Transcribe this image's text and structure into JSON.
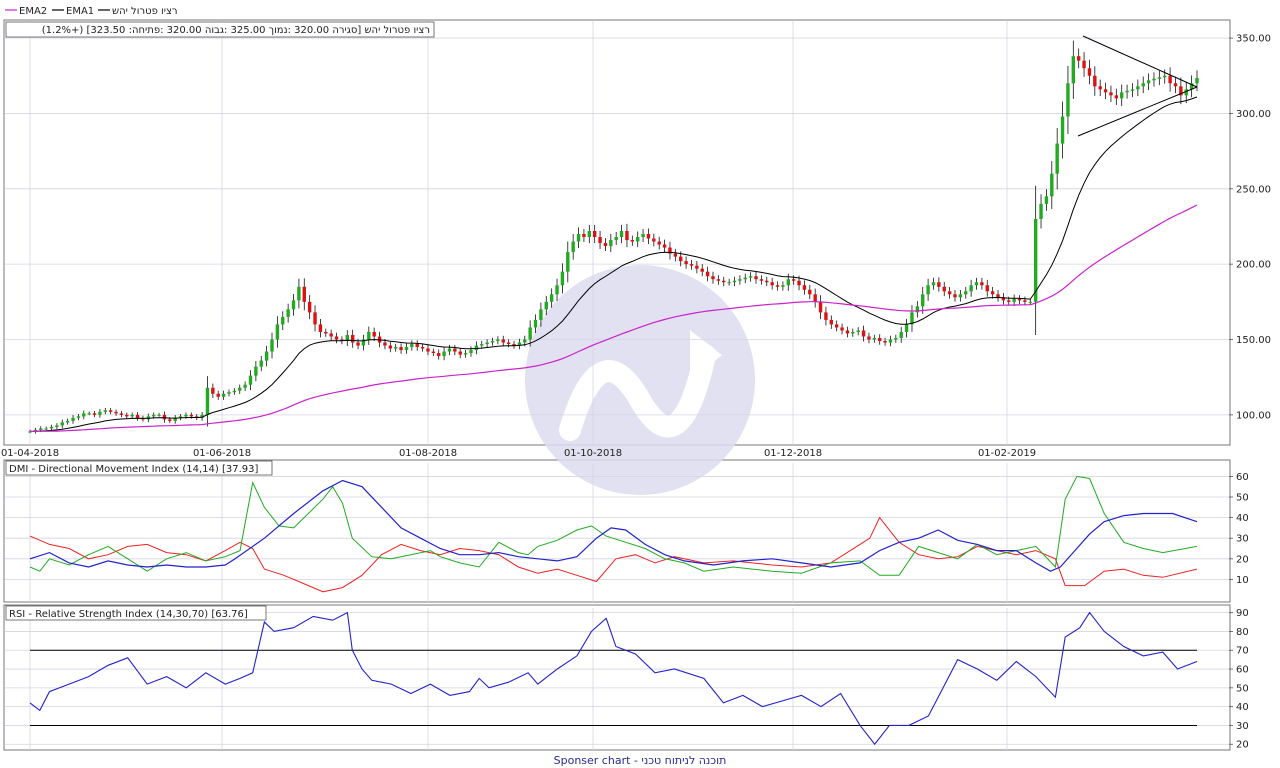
{
  "legend": {
    "ema2": "EMA2",
    "ema1": "EMA1",
    "stock": "רציו פטרול יהש"
  },
  "price_info": "(1.2%+) [323.50 :סגירה  320.00 :נמוך  325.00 :גבוה  320.00 :פתיחה] רציו פטרול יהש",
  "dmi_title": "DMI - Directional Movement Index (14,14) [37.93]",
  "rsi_title": "RSI - Relative Strength Index (14,30,70) [63.76]",
  "footer": "Sponser chart - תוכנה לניתוח טכני",
  "colors": {
    "ema1": "#000000",
    "ema2": "#cc22cc",
    "up": "#22aa22",
    "down": "#dd1111",
    "dmi_adx": "#2222cc",
    "dmi_plus": "#22aa22",
    "dmi_minus": "#ee2222",
    "rsi": "#2222cc",
    "grid": "#d4d4e4",
    "watermark": "#dcdcef"
  },
  "chart_data": [
    {
      "type": "candlestick",
      "ylim": [
        80,
        362
      ],
      "yticks": [
        100,
        150,
        200,
        250,
        300,
        350
      ],
      "xticks": [
        "01-04-2018",
        "01-06-2018",
        "01-08-2018",
        "01-10-2018",
        "01-12-2018",
        "01-02-2019"
      ],
      "closes": [
        89,
        90,
        91,
        91,
        92,
        93,
        95,
        96,
        98,
        99,
        101,
        101,
        100,
        102,
        103,
        102,
        101,
        100,
        99,
        100,
        98,
        97,
        99,
        100,
        100,
        97,
        96,
        98,
        99,
        100,
        99,
        98,
        100,
        118,
        114,
        112,
        114,
        115,
        116,
        118,
        120,
        126,
        132,
        136,
        142,
        150,
        160,
        165,
        170,
        176,
        185,
        175,
        168,
        160,
        155,
        154,
        152,
        150,
        149,
        153,
        148,
        146,
        150,
        155,
        152,
        148,
        146,
        144,
        145,
        143,
        145,
        147,
        145,
        144,
        142,
        141,
        139,
        142,
        144,
        142,
        140,
        141,
        143,
        146,
        147,
        148,
        149,
        150,
        148,
        147,
        146,
        148,
        150,
        158,
        163,
        170,
        175,
        180,
        186,
        195,
        208,
        215,
        220,
        218,
        222,
        218,
        214,
        212,
        216,
        218,
        222,
        216,
        215,
        218,
        220,
        217,
        215,
        213,
        211,
        207,
        205,
        202,
        200,
        199,
        197,
        195,
        192,
        190,
        189,
        188,
        188,
        189,
        190,
        191,
        192,
        190,
        189,
        188,
        186,
        185,
        186,
        190,
        189,
        186,
        183,
        180,
        175,
        168,
        163,
        160,
        158,
        156,
        154,
        155,
        156,
        152,
        150,
        151,
        149,
        148,
        150,
        151,
        155,
        160,
        168,
        172,
        180,
        186,
        188,
        185,
        182,
        180,
        178,
        180,
        182,
        186,
        188,
        186,
        182,
        180,
        178,
        176,
        175,
        177,
        176,
        175,
        175,
        230,
        240,
        245,
        260,
        280,
        298,
        320,
        338,
        335,
        330,
        325,
        318,
        316,
        314,
        312,
        310,
        314,
        315,
        316,
        318,
        320,
        322,
        323,
        324,
        325,
        320,
        318,
        312,
        316,
        320,
        323.5
      ],
      "triangle": {
        "upper": [
          [
            1083,
            36
          ],
          [
            1197,
            87
          ]
        ],
        "lower": [
          [
            1078,
            136
          ],
          [
            1197,
            87
          ]
        ]
      },
      "ema1": {
        "name": "EMA1"
      },
      "ema2": {
        "name": "EMA2"
      }
    },
    {
      "type": "line",
      "title": "DMI - Directional Movement Index (14,14) [37.93]",
      "ylim": [
        0,
        67
      ],
      "yticks": [
        10,
        20,
        30,
        40,
        50,
        60
      ],
      "adx": [
        [
          0,
          20
        ],
        [
          20,
          23
        ],
        [
          40,
          18
        ],
        [
          60,
          16
        ],
        [
          80,
          19
        ],
        [
          100,
          17
        ],
        [
          120,
          16
        ],
        [
          140,
          17
        ],
        [
          160,
          16
        ],
        [
          180,
          16
        ],
        [
          200,
          17
        ],
        [
          210,
          20
        ],
        [
          240,
          30
        ],
        [
          270,
          42
        ],
        [
          300,
          53
        ],
        [
          320,
          58
        ],
        [
          340,
          55
        ],
        [
          360,
          45
        ],
        [
          380,
          35
        ],
        [
          400,
          30
        ],
        [
          420,
          25
        ],
        [
          440,
          22
        ],
        [
          460,
          22
        ],
        [
          480,
          23
        ],
        [
          500,
          21
        ],
        [
          520,
          20
        ],
        [
          540,
          19
        ],
        [
          560,
          21
        ],
        [
          580,
          30
        ],
        [
          595,
          35
        ],
        [
          610,
          34
        ],
        [
          630,
          27
        ],
        [
          650,
          22
        ],
        [
          670,
          19
        ],
        [
          700,
          17
        ],
        [
          730,
          19
        ],
        [
          760,
          20
        ],
        [
          790,
          18
        ],
        [
          820,
          16
        ],
        [
          850,
          18
        ],
        [
          870,
          24
        ],
        [
          890,
          28
        ],
        [
          910,
          30
        ],
        [
          930,
          34
        ],
        [
          950,
          29
        ],
        [
          970,
          27
        ],
        [
          990,
          24
        ],
        [
          1010,
          24
        ],
        [
          1030,
          18
        ],
        [
          1045,
          14
        ],
        [
          1055,
          16
        ],
        [
          1070,
          24
        ],
        [
          1085,
          32
        ],
        [
          1100,
          38
        ],
        [
          1120,
          41
        ],
        [
          1140,
          42
        ],
        [
          1170,
          42
        ],
        [
          1195,
          38
        ]
      ],
      "plus": [
        [
          0,
          16
        ],
        [
          10,
          14
        ],
        [
          20,
          20
        ],
        [
          40,
          17
        ],
        [
          60,
          22
        ],
        [
          80,
          26
        ],
        [
          100,
          20
        ],
        [
          120,
          14
        ],
        [
          140,
          20
        ],
        [
          160,
          23
        ],
        [
          180,
          19
        ],
        [
          200,
          21
        ],
        [
          215,
          24
        ],
        [
          228,
          57
        ],
        [
          240,
          45
        ],
        [
          255,
          36
        ],
        [
          270,
          35
        ],
        [
          285,
          42
        ],
        [
          300,
          49
        ],
        [
          310,
          55
        ],
        [
          320,
          47
        ],
        [
          330,
          30
        ],
        [
          350,
          21
        ],
        [
          370,
          20
        ],
        [
          390,
          22
        ],
        [
          410,
          24
        ],
        [
          420,
          21
        ],
        [
          440,
          18
        ],
        [
          460,
          16
        ],
        [
          480,
          28
        ],
        [
          500,
          23
        ],
        [
          510,
          22
        ],
        [
          520,
          26
        ],
        [
          540,
          29
        ],
        [
          560,
          34
        ],
        [
          575,
          36
        ],
        [
          590,
          31
        ],
        [
          610,
          28
        ],
        [
          630,
          25
        ],
        [
          650,
          20
        ],
        [
          670,
          18
        ],
        [
          690,
          14
        ],
        [
          720,
          16
        ],
        [
          760,
          14
        ],
        [
          790,
          13
        ],
        [
          820,
          18
        ],
        [
          850,
          19
        ],
        [
          870,
          12
        ],
        [
          890,
          12
        ],
        [
          910,
          26
        ],
        [
          930,
          23
        ],
        [
          950,
          20
        ],
        [
          970,
          27
        ],
        [
          990,
          22
        ],
        [
          1010,
          24
        ],
        [
          1030,
          26
        ],
        [
          1050,
          16
        ],
        [
          1060,
          49
        ],
        [
          1072,
          60
        ],
        [
          1085,
          59
        ],
        [
          1100,
          42
        ],
        [
          1120,
          28
        ],
        [
          1140,
          25
        ],
        [
          1160,
          23
        ],
        [
          1195,
          26
        ]
      ],
      "minus": [
        [
          0,
          31
        ],
        [
          20,
          27
        ],
        [
          40,
          25
        ],
        [
          60,
          20
        ],
        [
          80,
          22
        ],
        [
          100,
          26
        ],
        [
          120,
          27
        ],
        [
          140,
          23
        ],
        [
          160,
          22
        ],
        [
          180,
          19
        ],
        [
          200,
          24
        ],
        [
          215,
          28
        ],
        [
          228,
          25
        ],
        [
          240,
          15
        ],
        [
          260,
          12
        ],
        [
          280,
          8
        ],
        [
          300,
          4
        ],
        [
          320,
          6
        ],
        [
          340,
          12
        ],
        [
          360,
          22
        ],
        [
          380,
          27
        ],
        [
          400,
          24
        ],
        [
          420,
          22
        ],
        [
          440,
          25
        ],
        [
          460,
          24
        ],
        [
          480,
          22
        ],
        [
          500,
          16
        ],
        [
          520,
          13
        ],
        [
          540,
          15
        ],
        [
          560,
          12
        ],
        [
          580,
          9
        ],
        [
          600,
          20
        ],
        [
          620,
          22
        ],
        [
          640,
          18
        ],
        [
          660,
          21
        ],
        [
          690,
          18
        ],
        [
          720,
          19
        ],
        [
          760,
          17
        ],
        [
          790,
          16
        ],
        [
          820,
          18
        ],
        [
          840,
          24
        ],
        [
          860,
          30
        ],
        [
          870,
          40
        ],
        [
          890,
          28
        ],
        [
          910,
          22
        ],
        [
          930,
          20
        ],
        [
          950,
          21
        ],
        [
          970,
          26
        ],
        [
          990,
          24
        ],
        [
          1010,
          22
        ],
        [
          1030,
          24
        ],
        [
          1050,
          20
        ],
        [
          1060,
          7
        ],
        [
          1080,
          7
        ],
        [
          1100,
          14
        ],
        [
          1120,
          15
        ],
        [
          1140,
          12
        ],
        [
          1160,
          11
        ],
        [
          1195,
          15
        ]
      ]
    },
    {
      "type": "line",
      "title": "RSI - Relative Strength Index (14,30,70) [63.76]",
      "ylim": [
        18,
        93
      ],
      "yticks": [
        20,
        30,
        40,
        50,
        60,
        70,
        80,
        90
      ],
      "levels": [
        30,
        70
      ],
      "rsi": [
        [
          0,
          42
        ],
        [
          10,
          38
        ],
        [
          20,
          48
        ],
        [
          40,
          52
        ],
        [
          60,
          56
        ],
        [
          80,
          62
        ],
        [
          100,
          66
        ],
        [
          120,
          52
        ],
        [
          140,
          56
        ],
        [
          160,
          50
        ],
        [
          180,
          58
        ],
        [
          200,
          52
        ],
        [
          215,
          55
        ],
        [
          228,
          58
        ],
        [
          240,
          85
        ],
        [
          250,
          80
        ],
        [
          270,
          82
        ],
        [
          290,
          88
        ],
        [
          310,
          86
        ],
        [
          325,
          90
        ],
        [
          330,
          70
        ],
        [
          340,
          60
        ],
        [
          350,
          54
        ],
        [
          370,
          52
        ],
        [
          390,
          47
        ],
        [
          410,
          52
        ],
        [
          430,
          46
        ],
        [
          450,
          48
        ],
        [
          460,
          55
        ],
        [
          470,
          50
        ],
        [
          490,
          53
        ],
        [
          510,
          58
        ],
        [
          520,
          52
        ],
        [
          540,
          60
        ],
        [
          560,
          67
        ],
        [
          575,
          80
        ],
        [
          590,
          87
        ],
        [
          600,
          72
        ],
        [
          620,
          68
        ],
        [
          640,
          58
        ],
        [
          660,
          60
        ],
        [
          690,
          55
        ],
        [
          710,
          42
        ],
        [
          730,
          46
        ],
        [
          750,
          40
        ],
        [
          770,
          43
        ],
        [
          790,
          46
        ],
        [
          810,
          40
        ],
        [
          830,
          47
        ],
        [
          850,
          30
        ],
        [
          865,
          20
        ],
        [
          880,
          30
        ],
        [
          900,
          30
        ],
        [
          920,
          35
        ],
        [
          935,
          50
        ],
        [
          950,
          65
        ],
        [
          970,
          60
        ],
        [
          990,
          54
        ],
        [
          1010,
          64
        ],
        [
          1030,
          56
        ],
        [
          1050,
          45
        ],
        [
          1060,
          77
        ],
        [
          1075,
          82
        ],
        [
          1085,
          90
        ],
        [
          1100,
          80
        ],
        [
          1120,
          72
        ],
        [
          1140,
          67
        ],
        [
          1160,
          69
        ],
        [
          1175,
          60
        ],
        [
          1195,
          64
        ]
      ]
    }
  ]
}
